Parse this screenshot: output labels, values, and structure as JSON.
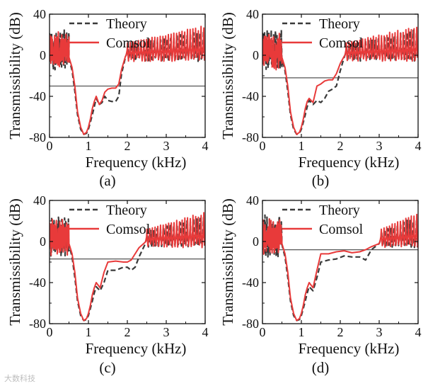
{
  "watermark": "大数科技",
  "series_styles": {
    "theory": {
      "color": "#3a3a3a",
      "dash": "dash"
    },
    "comsol": {
      "color": "#e83a3a",
      "dash": "solid"
    },
    "threshold": {
      "color": "#555555"
    }
  },
  "chart_data": [
    {
      "type": "line",
      "panel": "(a)",
      "xlabel": "Frequency (kHz)",
      "ylabel": "Transmissibility (dB)",
      "xlim": [
        0,
        4
      ],
      "ylim": [
        -80,
        40
      ],
      "xticks": [
        0,
        1,
        2,
        3,
        4
      ],
      "yticks": [
        -80,
        -40,
        0,
        40
      ],
      "legend": [
        "Theory",
        "Comsol"
      ],
      "legend_position": "top-center",
      "threshold": -30,
      "series": [
        {
          "name": "Theory",
          "style": "dashed",
          "x": [
            0.5,
            0.58,
            0.65,
            0.72,
            0.8,
            0.88,
            0.95,
            1.0,
            1.05,
            1.1,
            1.15,
            1.2,
            1.28,
            1.35,
            1.42,
            1.5,
            1.6,
            1.7,
            1.78,
            1.85,
            1.95
          ],
          "y": [
            -3,
            -15,
            -35,
            -58,
            -72,
            -77,
            -76,
            -72,
            -65,
            -58,
            -50,
            -42,
            -48,
            -46,
            -40,
            -44,
            -45,
            -45,
            -40,
            -18,
            -2
          ]
        },
        {
          "name": "Comsol",
          "style": "solid",
          "x": [
            0.5,
            0.58,
            0.65,
            0.72,
            0.8,
            0.88,
            0.95,
            1.0,
            1.05,
            1.1,
            1.15,
            1.2,
            1.28,
            1.35,
            1.42,
            1.5,
            1.6,
            1.7,
            1.78,
            1.85,
            1.95
          ],
          "y": [
            -2,
            -12,
            -30,
            -55,
            -70,
            -77,
            -75,
            -70,
            -62,
            -52,
            -45,
            -40,
            -48,
            -44,
            -36,
            -33,
            -32,
            -32,
            -28,
            -14,
            -1
          ]
        }
      ],
      "peak_ripple": {
        "theory_peaks": 25,
        "comsol_peaks": 30
      }
    },
    {
      "type": "line",
      "panel": "(b)",
      "xlabel": "Frequency (kHz)",
      "ylabel": "Transmissibility (dB)",
      "xlim": [
        0,
        4
      ],
      "ylim": [
        -80,
        40
      ],
      "xticks": [
        0,
        1,
        2,
        3,
        4
      ],
      "yticks": [
        -80,
        -40,
        0,
        40
      ],
      "legend": [
        "Theory",
        "Comsol"
      ],
      "legend_position": "top-center",
      "threshold": -22,
      "series": [
        {
          "name": "Theory",
          "style": "dashed",
          "x": [
            0.5,
            0.58,
            0.65,
            0.72,
            0.8,
            0.88,
            0.95,
            1.0,
            1.05,
            1.1,
            1.15,
            1.2,
            1.3,
            1.4,
            1.5,
            1.6,
            1.7,
            1.8,
            1.9,
            2.0,
            2.1
          ],
          "y": [
            -3,
            -15,
            -35,
            -58,
            -72,
            -77,
            -76,
            -72,
            -65,
            -58,
            -50,
            -44,
            -48,
            -44,
            -46,
            -42,
            -35,
            -33,
            -30,
            -15,
            -2
          ]
        },
        {
          "name": "Comsol",
          "style": "solid",
          "x": [
            0.5,
            0.58,
            0.65,
            0.72,
            0.8,
            0.88,
            0.95,
            1.0,
            1.05,
            1.1,
            1.15,
            1.2,
            1.3,
            1.4,
            1.5,
            1.6,
            1.7,
            1.8,
            1.9,
            2.0,
            2.1
          ],
          "y": [
            -2,
            -12,
            -30,
            -55,
            -70,
            -77,
            -75,
            -70,
            -62,
            -52,
            -45,
            -42,
            -46,
            -30,
            -28,
            -25,
            -24,
            -24,
            -18,
            -8,
            -1
          ]
        }
      ],
      "peak_ripple": {
        "theory_peaks": 25,
        "comsol_peaks": 30
      }
    },
    {
      "type": "line",
      "panel": "(c)",
      "xlabel": "Frequency (kHz)",
      "ylabel": "Transmissibility (dB)",
      "xlim": [
        0,
        4
      ],
      "ylim": [
        -80,
        40
      ],
      "xticks": [
        0,
        1,
        2,
        3,
        4
      ],
      "yticks": [
        -80,
        -40,
        0,
        40
      ],
      "legend": [
        "Theory",
        "Comsol"
      ],
      "legend_position": "top-center",
      "threshold": -17,
      "series": [
        {
          "name": "Theory",
          "style": "dashed",
          "x": [
            0.5,
            0.58,
            0.65,
            0.72,
            0.8,
            0.88,
            0.95,
            1.0,
            1.05,
            1.1,
            1.15,
            1.2,
            1.3,
            1.4,
            1.5,
            1.7,
            1.9,
            2.0,
            2.1,
            2.2,
            2.3,
            2.45
          ],
          "y": [
            -3,
            -15,
            -35,
            -58,
            -72,
            -77,
            -76,
            -72,
            -65,
            -58,
            -50,
            -44,
            -48,
            -40,
            -28,
            -28,
            -25,
            -25,
            -28,
            -25,
            -15,
            -3
          ]
        },
        {
          "name": "Comsol",
          "style": "solid",
          "x": [
            0.5,
            0.58,
            0.65,
            0.72,
            0.8,
            0.88,
            0.95,
            1.0,
            1.05,
            1.1,
            1.15,
            1.2,
            1.3,
            1.4,
            1.5,
            1.7,
            1.9,
            2.0,
            2.1,
            2.2,
            2.3,
            2.45
          ],
          "y": [
            -2,
            -12,
            -30,
            -55,
            -70,
            -77,
            -75,
            -70,
            -62,
            -52,
            -45,
            -40,
            -45,
            -30,
            -20,
            -19,
            -20,
            -20,
            -18,
            -12,
            -6,
            -1
          ]
        }
      ],
      "peak_ripple": {
        "theory_peaks": 25,
        "comsol_peaks": 30
      }
    },
    {
      "type": "line",
      "panel": "(d)",
      "xlabel": "Frequency (kHz)",
      "ylabel": "Transmissibility (dB)",
      "xlim": [
        0,
        4
      ],
      "ylim": [
        -80,
        40
      ],
      "xticks": [
        0,
        1,
        2,
        3,
        4
      ],
      "yticks": [
        -80,
        -40,
        0,
        40
      ],
      "legend": [
        "Theory",
        "Comsol"
      ],
      "legend_position": "top-center",
      "threshold": -8,
      "series": [
        {
          "name": "Theory",
          "style": "dashed",
          "x": [
            0.5,
            0.58,
            0.65,
            0.72,
            0.8,
            0.88,
            0.95,
            1.0,
            1.05,
            1.1,
            1.15,
            1.2,
            1.3,
            1.4,
            1.5,
            1.7,
            1.9,
            2.1,
            2.3,
            2.5,
            2.65,
            2.8,
            3.0
          ],
          "y": [
            -3,
            -15,
            -35,
            -58,
            -72,
            -77,
            -76,
            -72,
            -65,
            -58,
            -50,
            -44,
            -48,
            -35,
            -20,
            -18,
            -17,
            -14,
            -15,
            -15,
            -18,
            -8,
            -2
          ]
        },
        {
          "name": "Comsol",
          "style": "solid",
          "x": [
            0.5,
            0.58,
            0.65,
            0.72,
            0.8,
            0.88,
            0.95,
            1.0,
            1.05,
            1.1,
            1.15,
            1.2,
            1.3,
            1.4,
            1.5,
            1.7,
            1.9,
            2.1,
            2.3,
            2.5,
            2.65,
            2.8,
            3.0
          ],
          "y": [
            -2,
            -12,
            -30,
            -55,
            -70,
            -77,
            -75,
            -70,
            -62,
            -52,
            -45,
            -40,
            -45,
            -28,
            -12,
            -12,
            -10,
            -9,
            -11,
            -10,
            -8,
            -5,
            -2
          ]
        }
      ],
      "peak_ripple": {
        "theory_peaks": 25,
        "comsol_peaks": 30
      }
    }
  ]
}
